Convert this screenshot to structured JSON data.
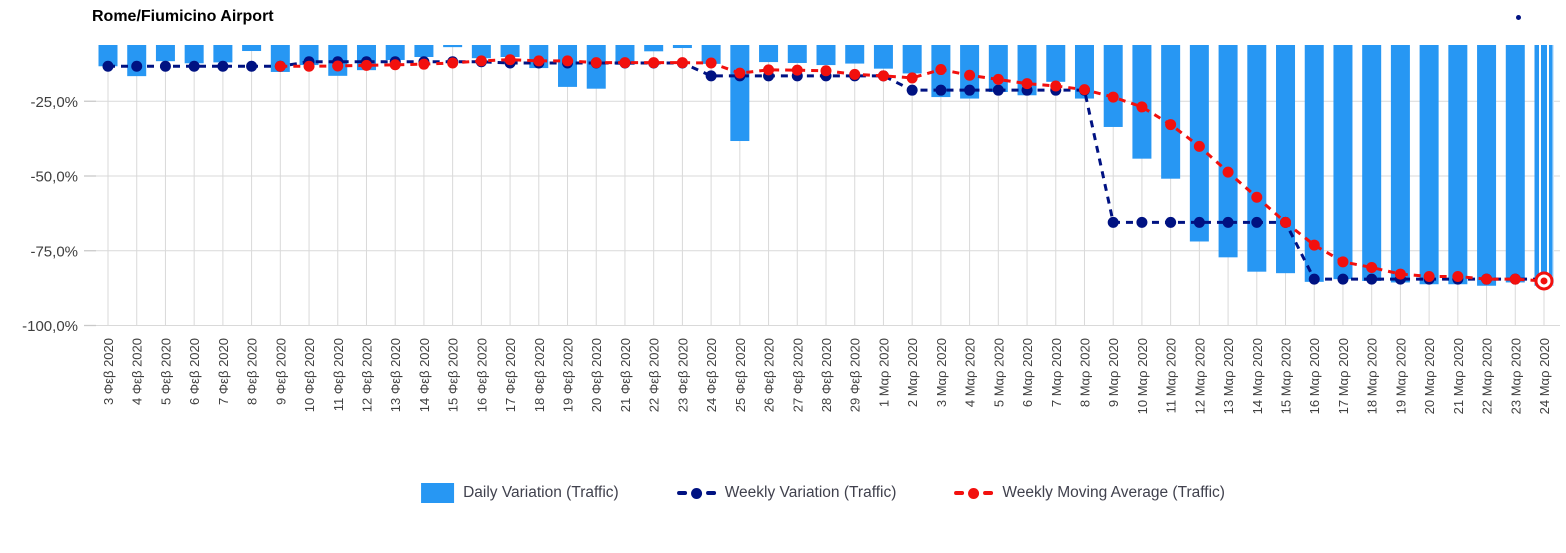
{
  "title": "Rome/Fiumicino Airport",
  "legend": [
    {
      "label": "Daily Variation (Traffic)",
      "type": "bar",
      "color": "#2797F3"
    },
    {
      "label": "Weekly Variation (Traffic)",
      "type": "line",
      "color": "#001282"
    },
    {
      "label": "Weekly Moving Average (Traffic)",
      "type": "line",
      "color": "#F2100E"
    }
  ],
  "chart_data": {
    "type": "bar",
    "title": "Rome/Fiumicino Airport",
    "xlabel": "",
    "ylabel": "",
    "ylim": [
      -100,
      0
    ],
    "grid": true,
    "legend_position": "bottom",
    "y_ticks": [
      {
        "label": "-25,0%",
        "value": -25
      },
      {
        "label": "-50,0%",
        "value": -50
      },
      {
        "label": "-75,0%",
        "value": -75
      },
      {
        "label": "-100,0%",
        "value": -100
      }
    ],
    "categories": [
      "3 Φεβ 2020",
      "4 Φεβ 2020",
      "5 Φεβ 2020",
      "6 Φεβ 2020",
      "7 Φεβ 2020",
      "8 Φεβ 2020",
      "9 Φεβ 2020",
      "10 Φεβ 2020",
      "11 Φεβ 2020",
      "12 Φεβ 2020",
      "13 Φεβ 2020",
      "14 Φεβ 2020",
      "15 Φεβ 2020",
      "16 Φεβ 2020",
      "17 Φεβ 2020",
      "18 Φεβ 2020",
      "19 Φεβ 2020",
      "20 Φεβ 2020",
      "21 Φεβ 2020",
      "22 Φεβ 2020",
      "23 Φεβ 2020",
      "24 Φεβ 2020",
      "25 Φεβ 2020",
      "26 Φεβ 2020",
      "27 Φεβ 2020",
      "28 Φεβ 2020",
      "29 Φεβ 2020",
      "1 Μαρ 2020",
      "2 Μαρ 2020",
      "3 Μαρ 2020",
      "4 Μαρ 2020",
      "5 Μαρ 2020",
      "6 Μαρ 2020",
      "7 Μαρ 2020",
      "8 Μαρ 2020",
      "9 Μαρ 2020",
      "10 Μαρ 2020",
      "11 Μαρ 2020",
      "12 Μαρ 2020",
      "13 Μαρ 2020",
      "14 Μαρ 2020",
      "15 Μαρ 2020",
      "16 Μαρ 2020",
      "17 Μαρ 2020",
      "18 Μαρ 2020",
      "19 Μαρ 2020",
      "20 Μαρ 2020",
      "21 Μαρ 2020",
      "22 Μαρ 2020",
      "23 Μαρ 2020",
      "24 Μαρ 2020"
    ],
    "series": [
      {
        "name": "Daily Variation (Traffic)",
        "type": "bar",
        "color": "#2797F3",
        "values": [
          -13.3,
          -16.6,
          -11.6,
          -12.3,
          -12.0,
          -8.2,
          -15.2,
          -12.9,
          -16.5,
          -14.6,
          -11.2,
          -10.2,
          -6.9,
          -10.6,
          -10.2,
          -13.9,
          -20.2,
          -20.8,
          -12.8,
          -8.3,
          -7.2,
          -12.5,
          -38.3,
          -11.9,
          -12.2,
          -12.9,
          -12.4,
          -14.1,
          -15.7,
          -23.6,
          -24.1,
          -21.9,
          -23.0,
          -18.5,
          -24.1,
          -33.6,
          -44.2,
          -50.9,
          -71.9,
          -77.2,
          -82.0,
          -82.5,
          -85.4,
          -84.5,
          -85.1,
          -85.6,
          -86.2,
          -86.2,
          -86.7,
          -85.6,
          -86.7
        ]
      },
      {
        "name": "Weekly Variation (Traffic)",
        "type": "line",
        "color": "#001282",
        "values": [
          -13.3,
          -13.3,
          -13.3,
          -13.3,
          -13.3,
          -13.3,
          -13.3,
          -11.8,
          -11.8,
          -11.8,
          -11.8,
          -11.8,
          -11.8,
          -11.8,
          -12.2,
          -12.2,
          -12.2,
          -12.2,
          -12.2,
          -12.2,
          -12.2,
          -16.5,
          -16.5,
          -16.5,
          -16.5,
          -16.5,
          -16.5,
          -16.5,
          -21.3,
          -21.3,
          -21.3,
          -21.3,
          -21.3,
          -21.3,
          -21.3,
          -65.5,
          -65.5,
          -65.5,
          -65.5,
          -65.5,
          -65.5,
          -65.5,
          -84.5,
          -84.5,
          -84.5,
          -84.5,
          -84.5,
          -84.5,
          -84.5,
          -84.5,
          -84.5
        ]
      },
      {
        "name": "Weekly Moving Average (Traffic)",
        "type": "line",
        "color": "#F2100E",
        "values": [
          null,
          null,
          null,
          null,
          null,
          null,
          -13.3,
          -13.3,
          -13.2,
          -13.0,
          -12.8,
          -12.6,
          -12.2,
          -11.5,
          -11.1,
          -11.5,
          -11.5,
          -12.1,
          -12.1,
          -12.1,
          -12.1,
          -12.2,
          -15.6,
          -14.5,
          -14.6,
          -14.8,
          -16.0,
          -16.5,
          -17.2,
          -14.4,
          -16.3,
          -17.7,
          -19.1,
          -19.9,
          -21.1,
          -23.6,
          -26.9,
          -32.8,
          -40.1,
          -48.7,
          -57.1,
          -65.5,
          -73.1,
          -78.7,
          -80.6,
          -82.8,
          -83.6,
          -83.6,
          -84.5,
          -84.5,
          -85.1
        ]
      }
    ],
    "annotations": {
      "last_point_highlighted": true,
      "last_bar_striped": true
    },
    "colors": {
      "grid": "#D9D9D9",
      "axis_text": "#3F3F3F",
      "background": "#FFFFFF"
    }
  }
}
